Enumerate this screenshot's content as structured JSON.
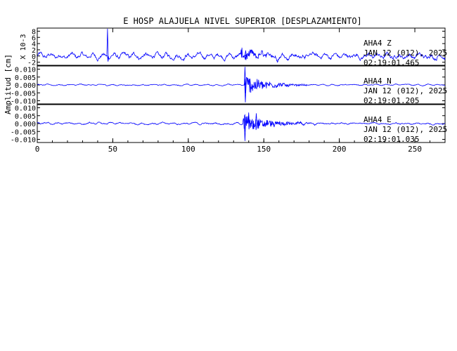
{
  "chart_data": {
    "type": "line",
    "title": "E HOSP ALAJUELA NIVEL SUPERIOR [DESPLAZAMIENTO]",
    "ylabel": "Amplitud [cm]",
    "xlim": [
      0,
      270
    ],
    "x_ticks": [
      "0",
      "50",
      "100",
      "150",
      "200",
      "250"
    ],
    "trace_color": "#0000ff",
    "panels": [
      {
        "component": "Z",
        "station": "AHA4",
        "station_line": "AHA4   Z",
        "date_line": "JAN 12 (012), 2025",
        "time_line": "02:19:01.465",
        "scale_label": "X 10-3",
        "ylim": [
          -3,
          9
        ],
        "y_ticks": [
          "8",
          "6",
          "4",
          "2",
          "0",
          "-2"
        ],
        "baseline_amplitude": 0.9,
        "events": [
          {
            "t": 46.5,
            "peak": 8.8
          },
          {
            "t": 46.9,
            "peak": -1.8
          },
          {
            "t": 138.0,
            "peak": 1.8
          }
        ],
        "coda": {
          "start": 135,
          "end": 180,
          "peak": 1.6
        }
      },
      {
        "component": "N",
        "station": "AHA4",
        "station_line": "AHA4   N",
        "date_line": "JAN 12 (012), 2025",
        "time_line": "02:19:01.205",
        "scale_label": "",
        "ylim": [
          -0.012,
          0.012
        ],
        "y_ticks": [
          "0.010",
          "0.005",
          "0.000",
          "-0.005",
          "-0.010"
        ],
        "baseline_amplitude": 0.0004,
        "events": [
          {
            "t": 137.5,
            "peak": 0.0115
          },
          {
            "t": 137.8,
            "peak": -0.011
          }
        ],
        "coda": {
          "start": 137,
          "end": 180,
          "peak": 0.007
        }
      },
      {
        "component": "E",
        "station": "AHA4",
        "station_line": "AHA4   E",
        "date_line": "JAN 12 (012), 2025",
        "time_line": "02:19:01.035",
        "scale_label": "",
        "ylim": [
          -0.012,
          0.012
        ],
        "y_ticks": [
          "0.010",
          "0.005",
          "0.000",
          "-0.005",
          "-0.010"
        ],
        "baseline_amplitude": 0.0006,
        "events": [
          {
            "t": 137.5,
            "peak": -0.011
          },
          {
            "t": 140.0,
            "peak": 0.007
          },
          {
            "t": 145.0,
            "peak": 0.0065
          }
        ],
        "coda": {
          "start": 136,
          "end": 185,
          "peak": 0.0065
        }
      }
    ]
  }
}
